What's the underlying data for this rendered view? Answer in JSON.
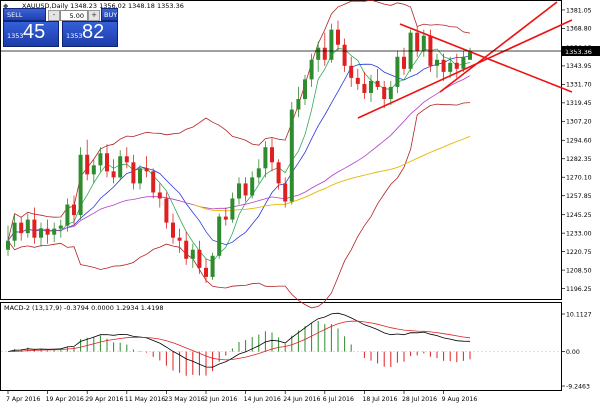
{
  "main_chart": {
    "header": "XAUUSD,Daily  1348.23 1356.02 1348.18 1353.36",
    "current_price": "1353.36",
    "price_ticks": [
      "1381.05",
      "1368.80",
      "1356.15",
      "1343.95",
      "1331.70",
      "1319.45",
      "1307.20",
      "1294.60",
      "1282.35",
      "1270.10",
      "1257.85",
      "1245.25",
      "1233.00",
      "1220.75",
      "1208.50",
      "1196.25"
    ]
  },
  "trade_panel": {
    "sell_label": "SELL",
    "buy_label": "BUY",
    "lot_value": "5.00",
    "minus_label": "-",
    "plus_label": "+",
    "sell_small": "1353",
    "sell_big": "45",
    "buy_small": "1353",
    "buy_big": "82"
  },
  "macd": {
    "header": "MACD-2 (13,17,9) -0.3794 0.0000 1.2934 1.4198",
    "ticks": [
      "10.1127",
      "0.00",
      "-9.2463"
    ]
  },
  "date_axis": [
    "7 Apr 2016",
    "19 Apr 2016",
    "29 Apr 2016",
    "11 May 2016",
    "23 May 2016",
    "2 Jun 2016",
    "14 Jun 2016",
    "24 Jun 2016",
    "6 Jul 2016",
    "18 Jul 2016",
    "28 Jul 2016",
    "9 Aug 2016"
  ],
  "colors": {
    "bull": "#2e8b2e",
    "bear": "#e02020",
    "bollinger": "#b22222",
    "ma_fast": "#2b3bd6",
    "ma_green": "#2faa55",
    "ma_purple": "#b03fc8",
    "ma_gold": "#e6b800",
    "trendline": "#ee1111",
    "macd_line": "#000000",
    "macd_signal": "#e02020"
  },
  "chart_data": {
    "type": "candlestick",
    "symbol": "XAUUSD",
    "timeframe": "Daily",
    "ylim": [
      1190,
      1385
    ],
    "candles": [
      [
        1222,
        1238,
        1218,
        1228
      ],
      [
        1228,
        1245,
        1224,
        1240
      ],
      [
        1240,
        1244,
        1228,
        1233
      ],
      [
        1233,
        1246,
        1230,
        1242
      ],
      [
        1242,
        1250,
        1226,
        1230
      ],
      [
        1230,
        1240,
        1224,
        1236
      ],
      [
        1236,
        1242,
        1226,
        1232
      ],
      [
        1232,
        1240,
        1227,
        1236
      ],
      [
        1236,
        1242,
        1230,
        1238
      ],
      [
        1238,
        1256,
        1234,
        1252
      ],
      [
        1252,
        1258,
        1238,
        1245
      ],
      [
        1245,
        1290,
        1242,
        1285
      ],
      [
        1285,
        1295,
        1268,
        1272
      ],
      [
        1272,
        1282,
        1266,
        1278
      ],
      [
        1278,
        1290,
        1274,
        1286
      ],
      [
        1286,
        1292,
        1270,
        1274
      ],
      [
        1274,
        1282,
        1266,
        1270
      ],
      [
        1270,
        1288,
        1268,
        1284
      ],
      [
        1284,
        1290,
        1276,
        1280
      ],
      [
        1280,
        1285,
        1262,
        1266
      ],
      [
        1266,
        1278,
        1262,
        1276
      ],
      [
        1276,
        1284,
        1270,
        1274
      ],
      [
        1274,
        1276,
        1256,
        1260
      ],
      [
        1260,
        1266,
        1250,
        1256
      ],
      [
        1256,
        1260,
        1236,
        1240
      ],
      [
        1240,
        1246,
        1226,
        1230
      ],
      [
        1230,
        1236,
        1220,
        1228
      ],
      [
        1228,
        1234,
        1212,
        1216
      ],
      [
        1216,
        1226,
        1210,
        1222
      ],
      [
        1222,
        1228,
        1206,
        1210
      ],
      [
        1210,
        1216,
        1200,
        1204
      ],
      [
        1204,
        1220,
        1202,
        1218
      ],
      [
        1218,
        1246,
        1216,
        1244
      ],
      [
        1244,
        1250,
        1238,
        1242
      ],
      [
        1242,
        1260,
        1240,
        1256
      ],
      [
        1256,
        1270,
        1252,
        1266
      ],
      [
        1266,
        1270,
        1254,
        1258
      ],
      [
        1258,
        1274,
        1256,
        1270
      ],
      [
        1270,
        1282,
        1266,
        1276
      ],
      [
        1276,
        1294,
        1270,
        1290
      ],
      [
        1290,
        1296,
        1274,
        1280
      ],
      [
        1280,
        1282,
        1262,
        1266
      ],
      [
        1266,
        1270,
        1250,
        1254
      ],
      [
        1254,
        1320,
        1252,
        1315
      ],
      [
        1315,
        1330,
        1310,
        1322
      ],
      [
        1322,
        1338,
        1318,
        1335
      ],
      [
        1335,
        1352,
        1330,
        1348
      ],
      [
        1348,
        1360,
        1340,
        1356
      ],
      [
        1356,
        1366,
        1344,
        1348
      ],
      [
        1348,
        1372,
        1346,
        1368
      ],
      [
        1368,
        1374,
        1354,
        1358
      ],
      [
        1358,
        1362,
        1340,
        1344
      ],
      [
        1344,
        1350,
        1330,
        1336
      ],
      [
        1336,
        1342,
        1328,
        1332
      ],
      [
        1332,
        1340,
        1322,
        1326
      ],
      [
        1326,
        1338,
        1320,
        1334
      ],
      [
        1334,
        1342,
        1328,
        1330
      ],
      [
        1330,
        1334,
        1316,
        1322
      ],
      [
        1322,
        1334,
        1318,
        1330
      ],
      [
        1330,
        1354,
        1326,
        1350
      ],
      [
        1350,
        1356,
        1338,
        1342
      ],
      [
        1342,
        1368,
        1340,
        1366
      ],
      [
        1366,
        1370,
        1350,
        1354
      ],
      [
        1354,
        1368,
        1350,
        1364
      ],
      [
        1364,
        1368,
        1340,
        1344
      ],
      [
        1344,
        1352,
        1336,
        1348
      ],
      [
        1348,
        1352,
        1334,
        1340
      ],
      [
        1340,
        1350,
        1336,
        1346
      ],
      [
        1346,
        1352,
        1336,
        1342
      ],
      [
        1342,
        1354,
        1340,
        1350
      ],
      [
        1348,
        1356,
        1348,
        1353
      ]
    ],
    "indicators": [
      "Bollinger Bands",
      "Moving Averages",
      "MACD (13,17,9)"
    ]
  }
}
